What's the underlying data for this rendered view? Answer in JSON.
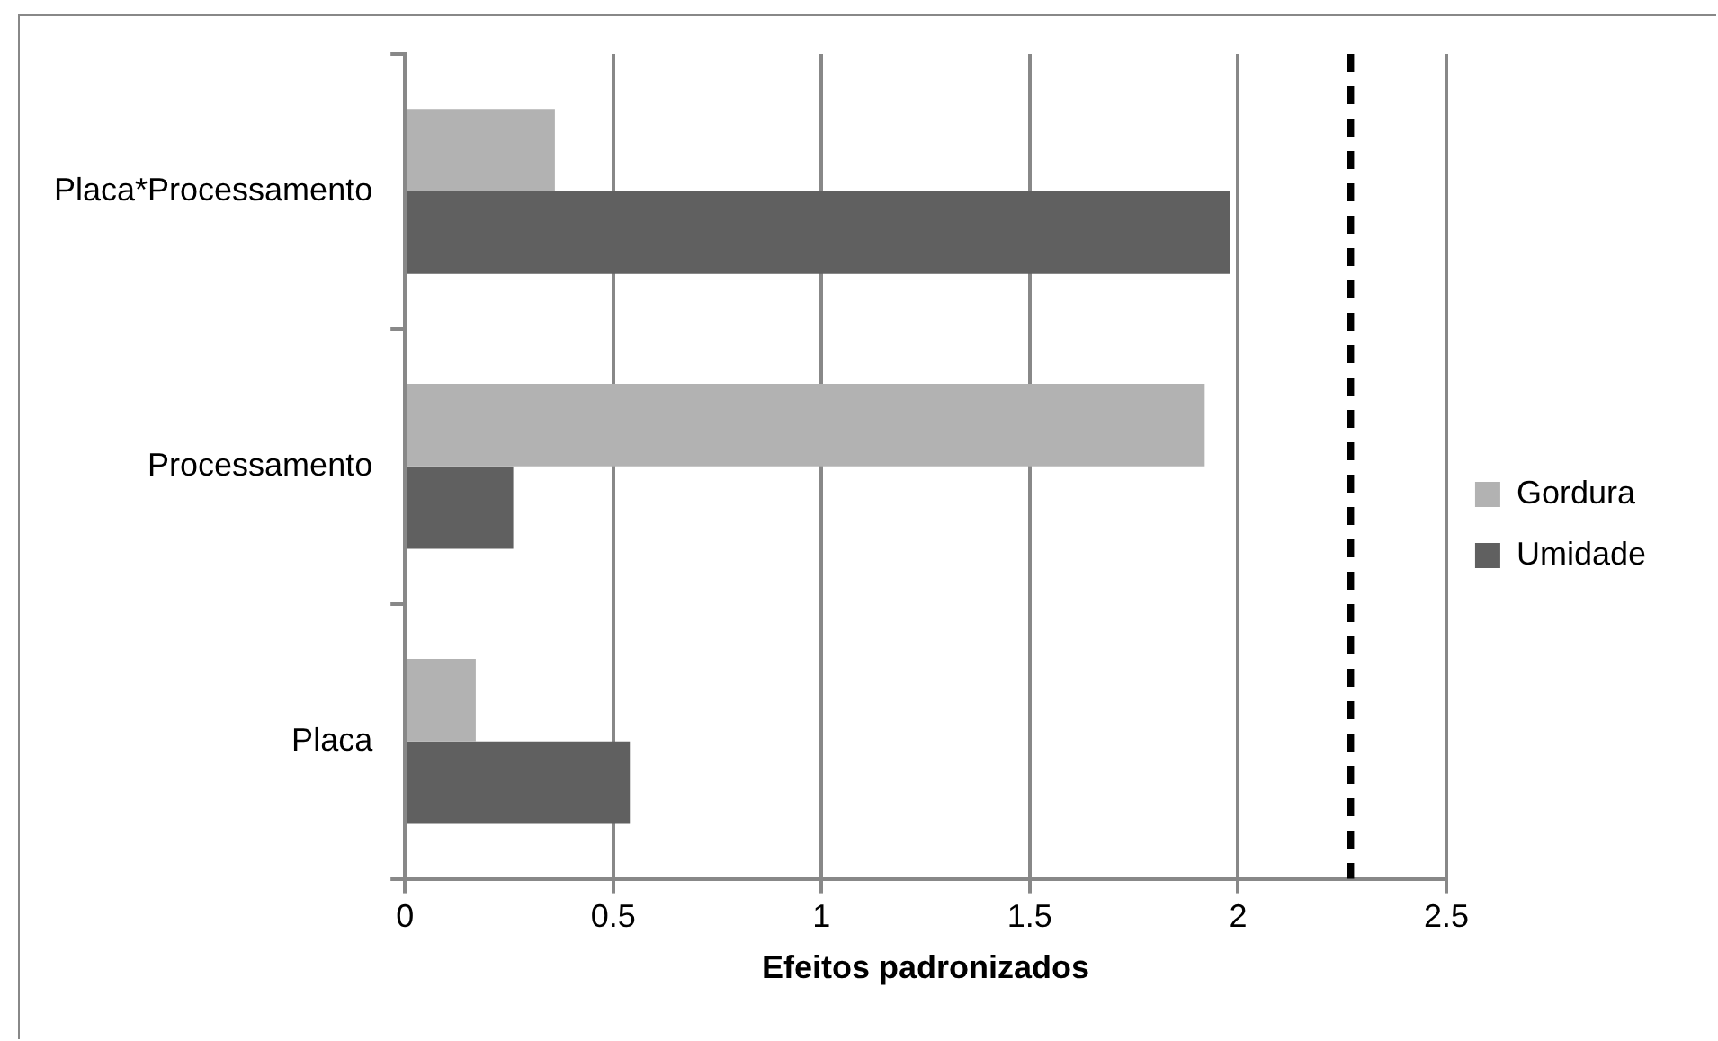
{
  "chart_data": {
    "type": "bar",
    "orientation": "horizontal",
    "xlabel": "Efeitos padronizados",
    "categories": [
      "Placa*Processamento",
      "Processamento",
      "Placa"
    ],
    "series": [
      {
        "name": "Gordura",
        "color": "#b2b2b2",
        "values": [
          0.36,
          1.92,
          0.17
        ]
      },
      {
        "name": "Umidade",
        "color": "#606060",
        "values": [
          1.98,
          0.26,
          0.54
        ]
      }
    ],
    "xlim": [
      0,
      2.5
    ],
    "xticks": [
      0,
      0.5,
      1,
      1.5,
      2,
      2.5
    ],
    "grid": "x",
    "legend": "right",
    "ref_lines": [
      {
        "axis": "x",
        "value": 2.27,
        "color": "#000000",
        "line_style": "dashed"
      }
    ]
  }
}
